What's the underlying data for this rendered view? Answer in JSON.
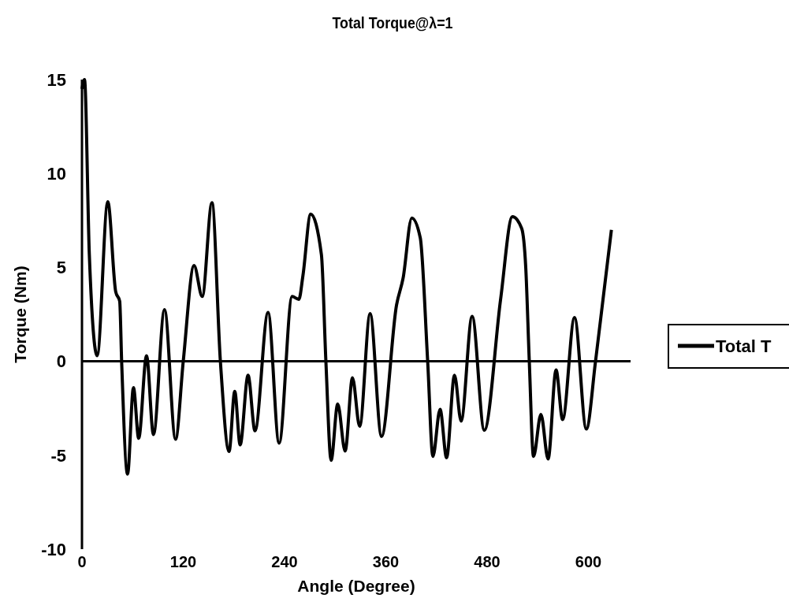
{
  "chart_data": {
    "type": "line",
    "title": "Total Torque@λ=1",
    "xlabel": "Angle (Degree)",
    "ylabel": "Torque (Nm)",
    "xlim": [
      0,
      650
    ],
    "xticks": [
      0,
      120,
      240,
      360,
      480,
      600
    ],
    "ylim": [
      -10,
      15
    ],
    "yticks": [
      -10,
      -5,
      0,
      5,
      10,
      15
    ],
    "legend": "right",
    "marker": "none",
    "line_style": "solid",
    "series": [
      {
        "name": "Total T",
        "color": "#000000",
        "x": [
          0,
          3,
          8.7,
          18,
          30.6,
          40,
          44.7,
          47,
          54,
          61,
          67.2,
          76.5,
          84.7,
          97.8,
          110.9,
          120,
          132.8,
          142.5,
          154,
          164,
          174.3,
          181,
          187.4,
          196.8,
          205,
          220.5,
          233.6,
          249,
          257,
          261.8,
          271,
          283.7,
          289,
          295.2,
          303,
          311.8,
          320.5,
          329,
          341.4,
          354.9,
          372.7,
          380.5,
          390.8,
          400.8,
          409.6,
          415.8,
          424.3,
          432,
          441.4,
          449.2,
          462.3,
          476.7,
          496,
          510,
          521,
          525.8,
          530,
          535,
          543.8,
          552.3,
          561.7,
          569.5,
          583.6,
          597.6,
          608.5,
          627.3
        ],
        "values": [
          14.5,
          15,
          5.7,
          0.3,
          8.5,
          3.7,
          3.2,
          0,
          -6,
          -1.4,
          -4.1,
          0.3,
          -3.9,
          2.75,
          -4.15,
          0,
          5.1,
          3.45,
          8.45,
          0,
          -4.8,
          -1.6,
          -4.45,
          -0.74,
          -3.7,
          2.6,
          -4.36,
          3.45,
          3.3,
          4.56,
          7.84,
          5.68,
          0,
          -5.27,
          -2.27,
          -4.78,
          -0.88,
          -3.46,
          2.54,
          -4,
          3,
          4.43,
          7.63,
          6.58,
          0,
          -5.06,
          -2.55,
          -5.13,
          -0.74,
          -3.18,
          2.4,
          -3.67,
          3.3,
          7.7,
          7.07,
          5,
          0,
          -5.06,
          -2.83,
          -5.2,
          -0.46,
          -3.1,
          2.33,
          -3.6,
          0,
          7
        ]
      }
    ]
  }
}
